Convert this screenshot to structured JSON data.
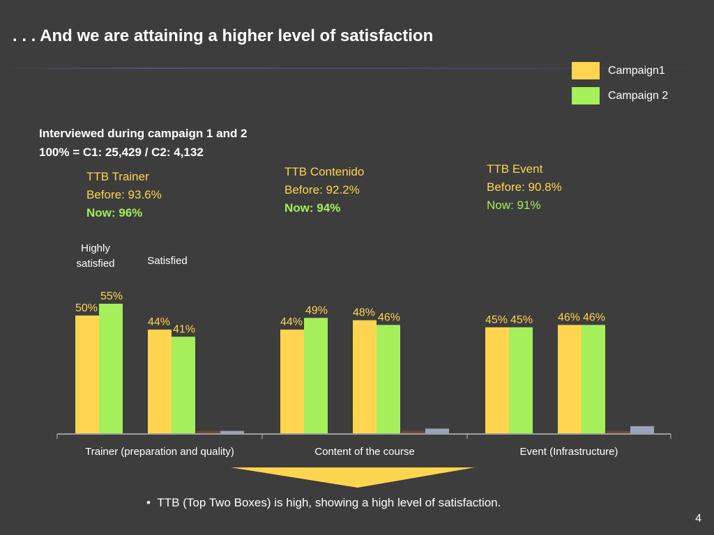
{
  "slide": {
    "title": ". . .  And we are attaining a higher level of satisfaction",
    "page_number": "4",
    "bullet": "TTB (Top Two Boxes)  is high, showing a high level of satisfaction."
  },
  "legend": [
    {
      "label": "Campaign1",
      "color": "#ffd54f"
    },
    {
      "label": "Campaign 2",
      "color": "#a4ef5a"
    }
  ],
  "interviewed": {
    "line1": "Interviewed during campaign 1 and 2",
    "line2": "100% = C1: 25,429 /  C2: 4,132"
  },
  "ttb_boxes": [
    {
      "label": "TTB Trainer",
      "before": "Before: 93.6%",
      "now": "Now: 96%",
      "now_bold": true
    },
    {
      "label": "TTB Contenido",
      "before": "Before: 92.2%",
      "now": "Now: 94%",
      "now_bold": true
    },
    {
      "label": "TTB Event",
      "before": "Before: 90.8%",
      "now": "Now:  91%",
      "now_bold": false
    }
  ],
  "column_headers": {
    "highly_satisfied": "Highly satisfied",
    "satisfied": "Satisfied"
  },
  "colors": {
    "background": "#3d3d3d",
    "campaign1": "#ffd54f",
    "campaign2": "#a4ef5a",
    "stub_brown": "#6b4a3a",
    "stub_gray": "#9aa3bd",
    "axis": "#bfbfbf",
    "accent_yellow": "#ffd54f",
    "accent_green": "#a4ef5a"
  },
  "chart_data": {
    "type": "bar",
    "categories": [
      "Trainer (preparation and quality)",
      "Content of the course",
      "Event (Infrastructure)"
    ],
    "subgroups": [
      "Highly satisfied",
      "Satisfied"
    ],
    "series": [
      {
        "name": "Campaign1",
        "highly_satisfied": [
          50,
          44,
          45
        ],
        "satisfied": [
          44,
          48,
          46
        ]
      },
      {
        "name": "Campaign 2",
        "highly_satisfied": [
          55,
          49,
          45
        ],
        "satisfied": [
          41,
          46,
          46
        ]
      }
    ],
    "data_labels": {
      "campaign1_highly": [
        "50%",
        "44%",
        "45%"
      ],
      "campaign2_highly": [
        "55%",
        "49%",
        "45%"
      ],
      "campaign1_satisfied": [
        "44%",
        "48%",
        "46%"
      ],
      "campaign2_satisfied": [
        "41%",
        "46%",
        "46%"
      ]
    },
    "unlabeled_series": [
      {
        "values": [
          1,
          1,
          1
        ],
        "color": "#6b4a3a"
      },
      {
        "values": [
          1,
          2,
          3
        ],
        "color": "#9aa3bd"
      }
    ],
    "ylim": [
      0,
      55
    ],
    "grid": false,
    "legend_position": "top-right"
  }
}
